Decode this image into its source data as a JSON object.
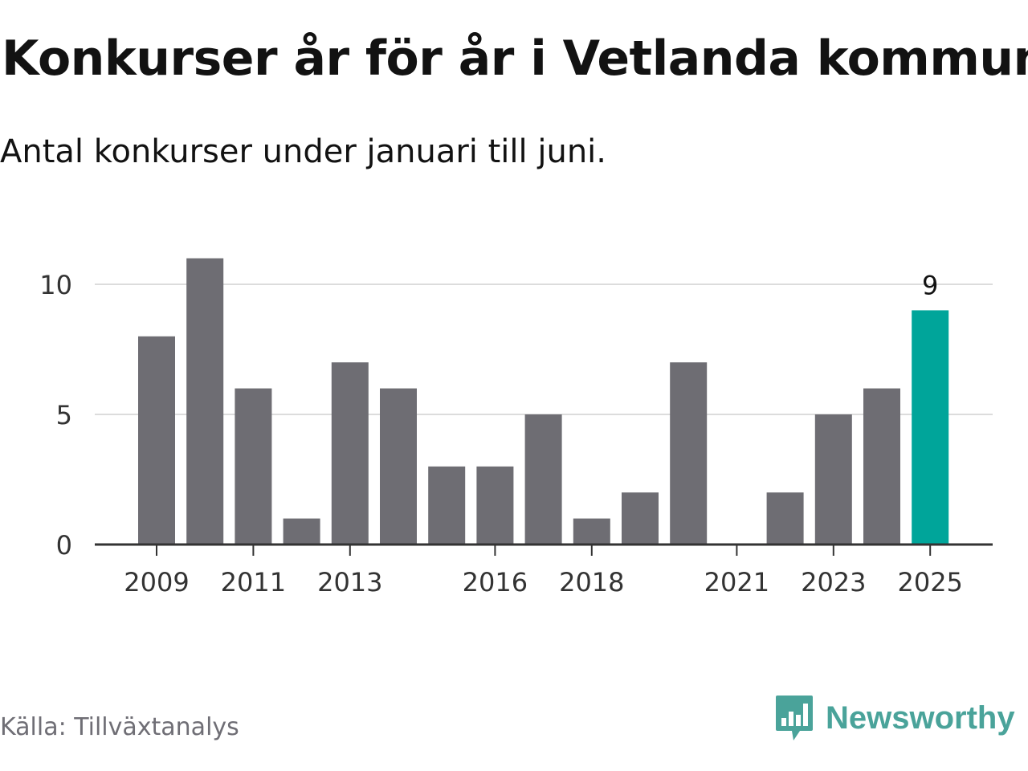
{
  "header": {
    "title": "Konkurser år för år i Vetlanda kommun",
    "subtitle": "Antal konkurser under januari till juni."
  },
  "footer": {
    "source": "Källa: Tillväxtanalys",
    "brand": "Newsworthy"
  },
  "colors": {
    "bar": "#6e6d73",
    "highlight": "#00a59a",
    "grid": "#dcdcdc",
    "axis": "#333333",
    "brand": "#4aa39a"
  },
  "icons": {
    "brand_logo": "newsworthy-chart-bubble-icon"
  },
  "chart_data": {
    "type": "bar",
    "categories": [
      "2009",
      "2010",
      "2011",
      "2012",
      "2013",
      "2014",
      "2015",
      "2016",
      "2017",
      "2018",
      "2019",
      "2020",
      "2021",
      "2022",
      "2023",
      "2024",
      "2025"
    ],
    "values": [
      8,
      11,
      6,
      1,
      7,
      6,
      3,
      3,
      5,
      1,
      2,
      7,
      0,
      2,
      5,
      6,
      9
    ],
    "x_tick_labels": [
      "2009",
      "2011",
      "2013",
      "2016",
      "2018",
      "2021",
      "2023",
      "2025"
    ],
    "y_ticks": [
      0,
      5,
      10
    ],
    "ylim": [
      0,
      11
    ],
    "grid": true,
    "highlight_category": "2025",
    "annotations": [
      {
        "category": "2025",
        "label": "9"
      }
    ],
    "title": "",
    "xlabel": "",
    "ylabel": ""
  }
}
